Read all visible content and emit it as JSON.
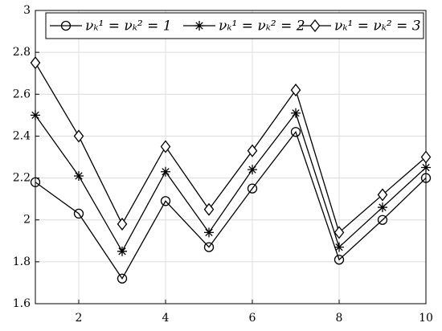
{
  "chart_data": {
    "type": "line",
    "x": [
      1,
      2,
      3,
      4,
      5,
      6,
      7,
      8,
      9,
      10
    ],
    "series": [
      {
        "name": "νₖ¹ = νₖ² = 1",
        "color": "#000000",
        "marker": "circle",
        "values": [
          2.18,
          2.03,
          1.72,
          2.09,
          1.87,
          2.15,
          2.42,
          1.81,
          2.0,
          2.2
        ]
      },
      {
        "name": "νₖ¹ = νₖ² = 2",
        "color": "#000000",
        "marker": "asterisk",
        "values": [
          2.5,
          2.21,
          1.85,
          2.23,
          1.94,
          2.24,
          2.51,
          1.87,
          2.06,
          2.25
        ]
      },
      {
        "name": "νₖ¹ = νₖ² = 3",
        "color": "#000000",
        "marker": "diamond",
        "values": [
          2.75,
          2.4,
          1.98,
          2.35,
          2.05,
          2.33,
          2.62,
          1.94,
          2.12,
          2.3
        ]
      }
    ],
    "xlim": [
      1,
      10
    ],
    "xticks": [
      2,
      4,
      6,
      8,
      10
    ],
    "ylim": [
      1.6,
      3
    ],
    "yticks": [
      1.6,
      1.8,
      2,
      2.2,
      2.4,
      2.6,
      2.8,
      3
    ],
    "grid": true,
    "legend": "top"
  }
}
